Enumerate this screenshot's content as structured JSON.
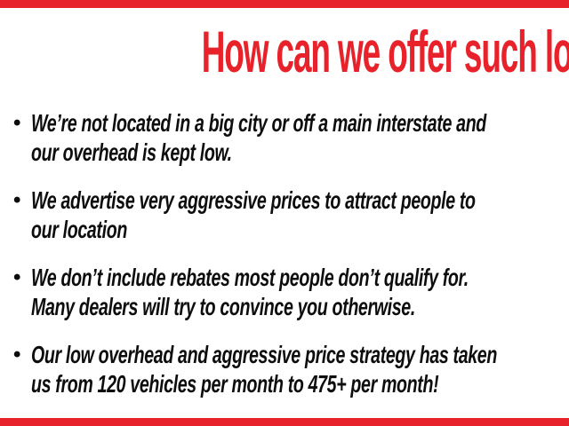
{
  "slide": {
    "title": "How can we offer such low prices?",
    "bullet_char": "•",
    "bullets": [
      {
        "lines": [
          "We’re not located in a big city or off a main interstate and",
          "our overhead is kept low."
        ]
      },
      {
        "lines": [
          "We advertise very aggressive prices to attract people to",
          "our location"
        ]
      },
      {
        "lines": [
          "We don’t include rebates most people don’t qualify for.",
          "Many dealers will try to convince you otherwise."
        ]
      },
      {
        "lines": [
          "Our low overhead and aggressive price strategy has taken",
          "us from 120 vehicles per month to 475+ per month!"
        ]
      }
    ],
    "colors": {
      "accent_red": "#e8222a",
      "text_black": "#0d0d0d",
      "background": "#ffffff"
    }
  }
}
